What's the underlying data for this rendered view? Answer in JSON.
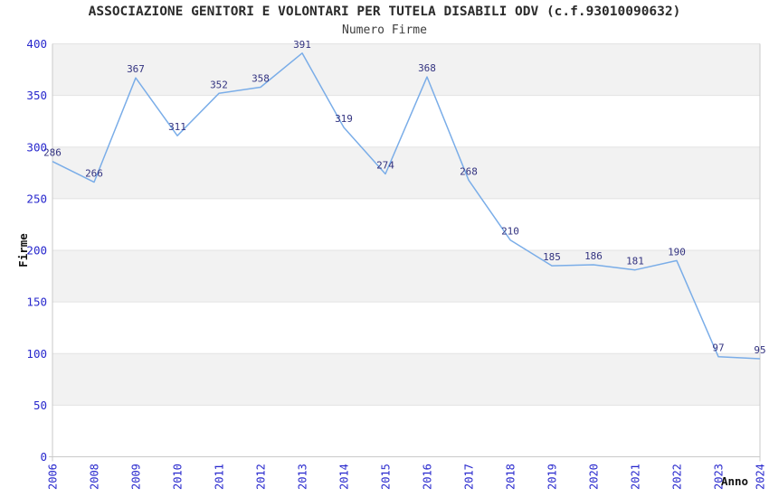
{
  "chart_data": {
    "type": "line",
    "title": "ASSOCIAZIONE GENITORI E VOLONTARI PER TUTELA DISABILI ODV (c.f.93010090632)",
    "subtitle": "Numero Firme",
    "xlabel": "Anno",
    "ylabel": "Firme",
    "categories": [
      "2006",
      "2008",
      "2009",
      "2010",
      "2011",
      "2012",
      "2013",
      "2014",
      "2015",
      "2016",
      "2017",
      "2018",
      "2019",
      "2020",
      "2021",
      "2022",
      "2023",
      "2024"
    ],
    "values": [
      286,
      266,
      367,
      311,
      352,
      358,
      391,
      319,
      274,
      368,
      268,
      210,
      185,
      186,
      181,
      190,
      97,
      95
    ],
    "ylim": [
      0,
      400
    ],
    "ytick_step": 50,
    "grid": "horizontal-bands",
    "legend": "none",
    "data_labels_shown": true,
    "colors": {
      "line": "#7aade8",
      "data_label": "#333380",
      "tick_label": "#2727cd",
      "band_fill": "#f2f2f2",
      "gridline": "#e3e3e3",
      "axis_line": "#c9c9c9",
      "title_text": "#2b2b2b",
      "subtitle_text": "#3d3d3d",
      "axis_title_text": "#111111",
      "background": "#ffffff"
    }
  }
}
